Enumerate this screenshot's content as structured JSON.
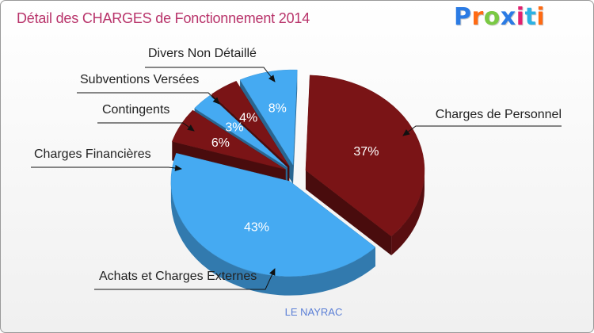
{
  "title": "Détail des CHARGES de Fonctionnement 2014",
  "logo": {
    "text": "Proxiti",
    "letter_colors": [
      "#2b7be4",
      "#ff6a13",
      "#7ac943",
      "#2b7be4",
      "#e2206f",
      "#2bb2e4",
      "#ff6a13"
    ]
  },
  "subtitle": "LE NAYRAC",
  "colors": {
    "maroon": "#7a1416",
    "blue": "#45aaf2",
    "title": "#b8336a"
  },
  "chart_data": {
    "type": "pie",
    "title": "Détail des CHARGES de Fonctionnement 2014",
    "subtitle": "LE NAYRAC",
    "slices": [
      {
        "label": "Charges de Personnel",
        "value": 37,
        "value_label": "37%",
        "color": "#7a1416"
      },
      {
        "label": "Achats et Charges Externes",
        "value": 43,
        "value_label": "43%",
        "color": "#45aaf2"
      },
      {
        "label": "Charges Financières",
        "value": 6,
        "value_label": "6%",
        "color": "#7a1416"
      },
      {
        "label": "Contingents",
        "value": 3,
        "value_label": "3%",
        "color": "#45aaf2"
      },
      {
        "label": "Subventions Versées",
        "value": 4,
        "value_label": "4%",
        "color": "#7a1416"
      },
      {
        "label": "Divers Non Détaillé",
        "value": 8,
        "value_label": "8%",
        "color": "#45aaf2"
      }
    ]
  }
}
